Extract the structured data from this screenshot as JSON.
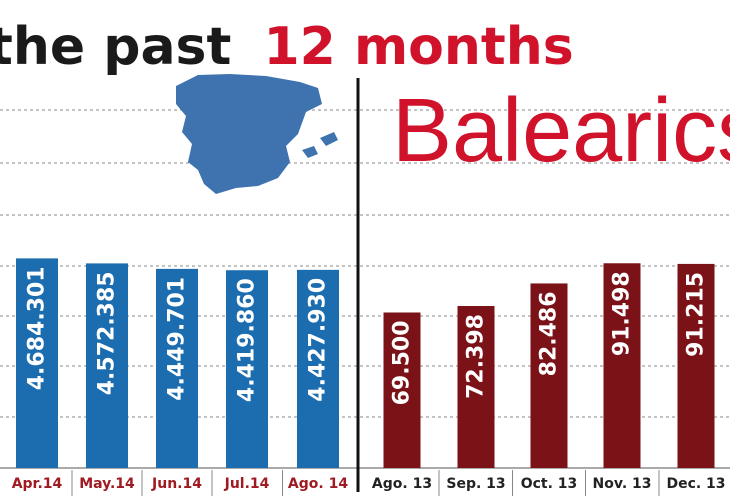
{
  "header": {
    "title_part1": "the past",
    "title_part2": "12 months"
  },
  "colors": {
    "spain": "#1c6db0",
    "balearics": "#7a1217",
    "title_dark": "#1a1a1a",
    "title_red": "#d0122a",
    "spain_tick": "#a01a22",
    "balearics_tick": "#222222",
    "grid": "#888888",
    "map": "#3f73b0"
  },
  "chart_data": [
    {
      "type": "bar",
      "title": "",
      "map_icon": "spain-map-icon",
      "categories": [
        "Apr.14",
        "May.14",
        "Jun.14",
        "Jul.14",
        "Ago. 14"
      ],
      "values": [
        4684301,
        4572385,
        4449701,
        4419860,
        4427930
      ],
      "data_labels": [
        "4.684.301",
        "4.572.385",
        "4.449.701",
        "4.419.860",
        "4.427.930"
      ],
      "grid": true,
      "ylim": [
        0,
        8000000
      ]
    },
    {
      "type": "bar",
      "title": "Balearics",
      "categories": [
        "Ago. 13",
        "Sep. 13",
        "Oct. 13",
        "Nov. 13",
        "Dec. 13"
      ],
      "values": [
        69500,
        72398,
        82486,
        91498,
        91215
      ],
      "data_labels": [
        "69.500",
        "72.398",
        "82.486",
        "91.498",
        "91.215"
      ],
      "grid": true,
      "ylim": [
        0,
        160000
      ]
    }
  ]
}
